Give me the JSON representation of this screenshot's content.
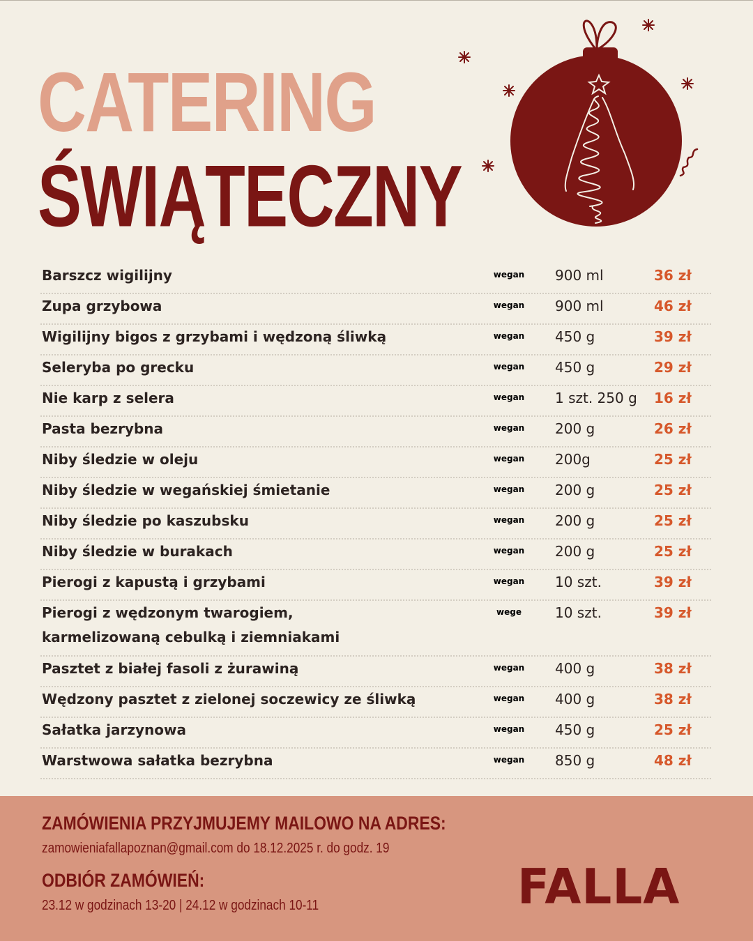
{
  "title": {
    "line1": "CATERING",
    "line2": "ŚWIĄTECZNY"
  },
  "colors": {
    "background": "#f3efe5",
    "title_light": "#e0a18a",
    "title_dark": "#7a1614",
    "price": "#d6582b",
    "badge_vegan": "#1d6b57",
    "badge_vege": "#cfe7d5",
    "footer_bg": "#d7967f"
  },
  "decoration": {
    "icon": "christmas-ornament-with-tree-icon"
  },
  "menu": [
    {
      "name": "Barszcz wigilijny",
      "badge": "wegan",
      "qty": "900 ml",
      "price": "36 zł"
    },
    {
      "name": "Zupa grzybowa",
      "badge": "wegan",
      "qty": "900 ml",
      "price": "46 zł"
    },
    {
      "name": "Wigilijny bigos z grzybami i wędzoną śliwką",
      "badge": "wegan",
      "qty": "450 g",
      "price": "39 zł"
    },
    {
      "name": "Seleryba po grecku",
      "badge": "wegan",
      "qty": "450 g",
      "price": "29 zł"
    },
    {
      "name": "Nie karp z selera",
      "badge": "wegan",
      "qty": "1 szt. 250 g",
      "price": "16 zł"
    },
    {
      "name": "Pasta bezrybna",
      "badge": "wegan",
      "qty": "200 g",
      "price": "26 zł"
    },
    {
      "name": "Niby śledzie w oleju",
      "badge": "wegan",
      "qty": "200g",
      "price": "25 zł"
    },
    {
      "name": "Niby śledzie w wegańskiej śmietanie",
      "badge": "wegan",
      "qty": "200 g",
      "price": "25 zł"
    },
    {
      "name": "Niby śledzie po kaszubsku",
      "badge": "wegan",
      "qty": "200 g",
      "price": "25 zł"
    },
    {
      "name": "Niby śledzie w burakach",
      "badge": "wegan",
      "qty": "200 g",
      "price": "25 zł"
    },
    {
      "name": "Pierogi z kapustą i grzybami",
      "badge": "wegan",
      "qty": "10 szt.",
      "price": "39 zł"
    },
    {
      "name": "Pierogi z wędzonym twarogiem,",
      "name2": "karmelizowaną cebulką i ziemniakami",
      "badge": "wege",
      "qty": "10 szt.",
      "price": "39 zł"
    },
    {
      "name": "Pasztet z białej fasoli z żurawiną",
      "badge": "wegan",
      "qty": "400 g",
      "price": "38 zł"
    },
    {
      "name": "Wędzony pasztet z zielonej soczewicy ze śliwką",
      "badge": "wegan",
      "qty": "400 g",
      "price": "38 zł"
    },
    {
      "name": "Sałatka jarzynowa",
      "badge": "wegan",
      "qty": "450 g",
      "price": "25 zł"
    },
    {
      "name": "Warstwowa sałatka bezrybna",
      "badge": "wegan",
      "qty": "850 g",
      "price": "48 zł"
    }
  ],
  "footer": {
    "orders_heading": "ZAMÓWIENIA PRZYJMUJEMY MAILOWO NA ADRES:",
    "orders_text": "zamowieniafallapoznan@gmail.com do 18.12.2025 r. do godz. 19",
    "pickup_heading": "ODBIÓR ZAMÓWIEŃ:",
    "pickup_text": "23.12 w godzinach 13-20 | 24.12  w godzinach  10-11",
    "logo": "FALLA"
  }
}
